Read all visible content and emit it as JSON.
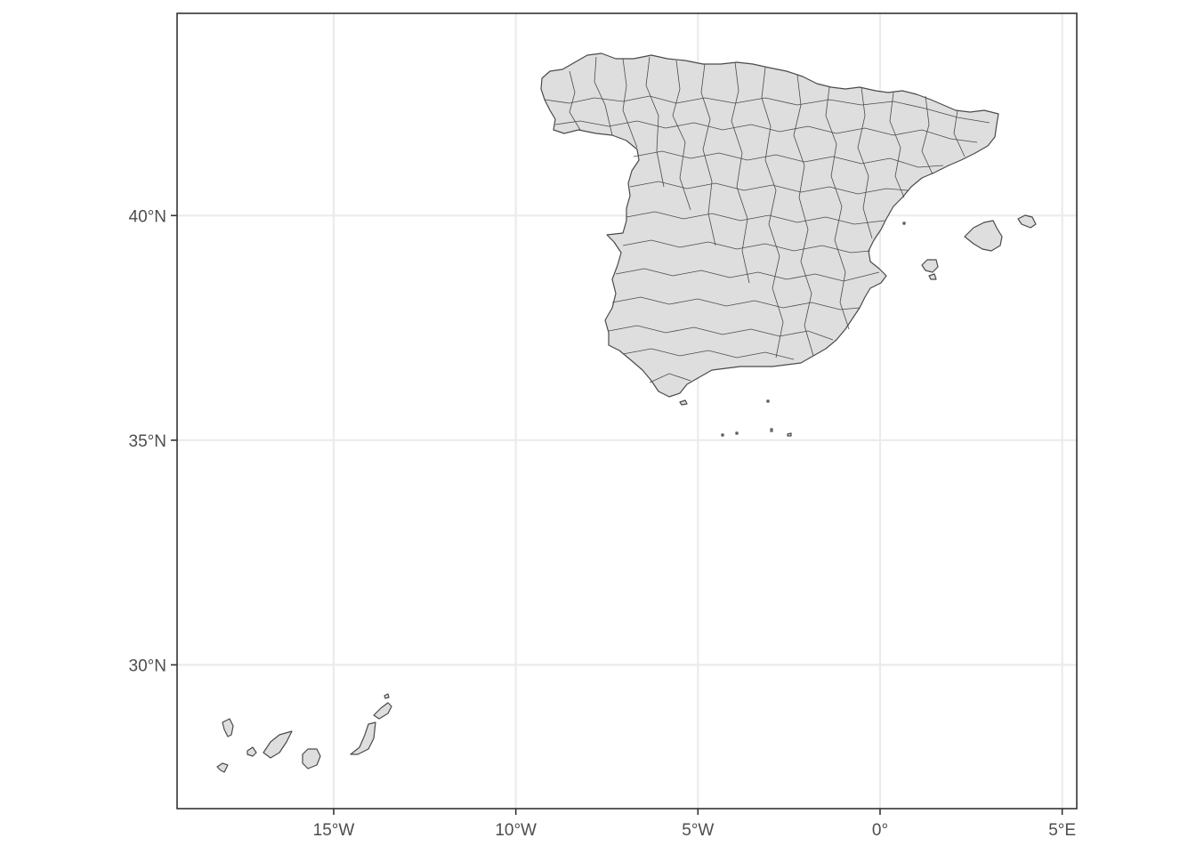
{
  "map": {
    "type": "choropleth-outline",
    "region": "Spain",
    "fill_color": "#dedede",
    "stroke_color": "#4a4a4a",
    "grid": true,
    "lon_range": [
      -19.3,
      5.4
    ],
    "lat_range": [
      26.8,
      44.5
    ],
    "x_ticks": [
      {
        "value": -15,
        "label": "15°W"
      },
      {
        "value": -10,
        "label": "10°W"
      },
      {
        "value": -5,
        "label": "5°W"
      },
      {
        "value": 0,
        "label": "0°"
      },
      {
        "value": 5,
        "label": "5°E"
      }
    ],
    "y_ticks": [
      {
        "value": 30,
        "label": "30°N"
      },
      {
        "value": 35,
        "label": "35°N"
      },
      {
        "value": 40,
        "label": "40°N"
      }
    ]
  }
}
